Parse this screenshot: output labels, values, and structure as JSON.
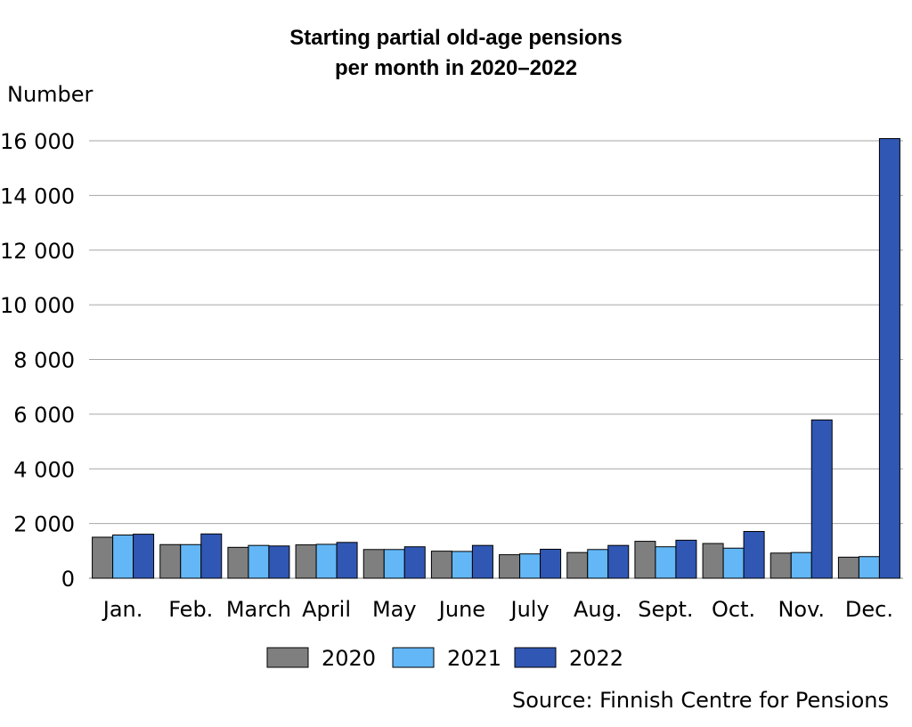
{
  "chart_data": {
    "type": "bar",
    "title_line1": "Starting partial old-age pensions",
    "title_line2": "per month in 2020–2022",
    "ylabel": "Number",
    "xlabel": "",
    "source": "Source: Finnish Centre for Pensions",
    "ylim": [
      0,
      16000
    ],
    "yticks": [
      0,
      2000,
      4000,
      6000,
      8000,
      10000,
      12000,
      14000,
      16000
    ],
    "ytick_labels": [
      "0",
      "2 000",
      "4 000",
      "6 000",
      "8 000",
      "10 000",
      "12 000",
      "14 000",
      "16 000"
    ],
    "categories": [
      "Jan.",
      "Feb.",
      "March",
      "April",
      "May",
      "June",
      "July",
      "Aug.",
      "Sept.",
      "Oct.",
      "Nov.",
      "Dec."
    ],
    "series": [
      {
        "name": "2020",
        "color": "#7f7f7f",
        "values": [
          1500,
          1230,
          1130,
          1220,
          1050,
          990,
          860,
          940,
          1350,
          1270,
          920,
          770
        ]
      },
      {
        "name": "2021",
        "color": "#63b7f6",
        "values": [
          1580,
          1230,
          1200,
          1240,
          1050,
          980,
          890,
          1050,
          1150,
          1100,
          940,
          790
        ]
      },
      {
        "name": "2022",
        "color": "#3057b4",
        "values": [
          1610,
          1620,
          1180,
          1310,
          1150,
          1200,
          1060,
          1200,
          1390,
          1710,
          5790,
          16080
        ]
      }
    ],
    "grid": true,
    "legend_position": "bottom-center"
  }
}
